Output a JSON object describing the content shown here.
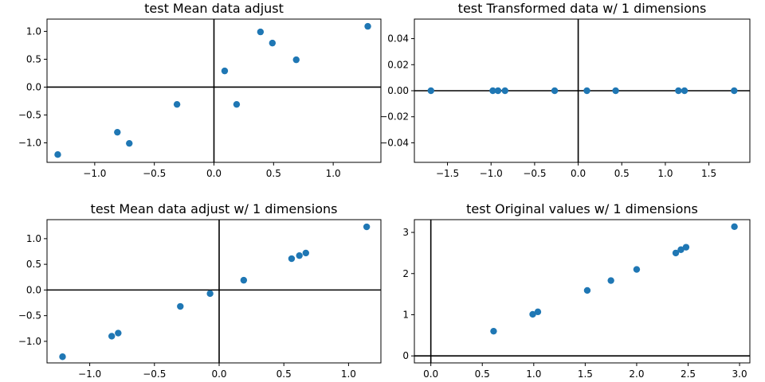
{
  "figure": {
    "point_color": "#1f77b4"
  },
  "chart_data": [
    {
      "type": "scatter",
      "title": "test Mean data adjust",
      "xlabel": "",
      "ylabel": "",
      "xlim": [
        -1.4,
        1.4
      ],
      "ylim": [
        -1.35,
        1.22
      ],
      "xticks": [
        -1.0,
        -0.5,
        0.0,
        0.5,
        1.0
      ],
      "xtick_labels": [
        "−1.0",
        "−0.5",
        "0.0",
        "0.5",
        "1.0"
      ],
      "yticks": [
        -1.0,
        -0.5,
        0.0,
        0.5,
        1.0
      ],
      "ytick_labels": [
        "−1.0",
        "−0.5",
        "0.0",
        "0.5",
        "1.0"
      ],
      "reference_lines": {
        "x": 0,
        "y": 0
      },
      "grid": false,
      "points": [
        {
          "x": 0.69,
          "y": 0.49
        },
        {
          "x": -1.31,
          "y": -1.21
        },
        {
          "x": 0.39,
          "y": 0.99
        },
        {
          "x": 0.09,
          "y": 0.29
        },
        {
          "x": 1.29,
          "y": 1.09
        },
        {
          "x": 0.49,
          "y": 0.79
        },
        {
          "x": 0.19,
          "y": -0.31
        },
        {
          "x": -0.81,
          "y": -0.81
        },
        {
          "x": -0.31,
          "y": -0.31
        },
        {
          "x": -0.71,
          "y": -1.01
        }
      ]
    },
    {
      "type": "scatter",
      "title": "test Transformed data w/ 1 dimensions",
      "xlabel": "",
      "ylabel": "",
      "xlim": [
        -1.88,
        1.97
      ],
      "ylim": [
        -0.055,
        0.055
      ],
      "xticks": [
        -1.5,
        -1.0,
        -0.5,
        0.0,
        0.5,
        1.0,
        1.5
      ],
      "xtick_labels": [
        "−1.5",
        "−1.0",
        "−0.5",
        "0.0",
        "0.5",
        "1.0",
        "1.5"
      ],
      "yticks": [
        -0.04,
        -0.02,
        0.0,
        0.02,
        0.04
      ],
      "ytick_labels": [
        "−0.04",
        "−0.02",
        "0.00",
        "0.02",
        "0.04"
      ],
      "reference_lines": {
        "x": 0,
        "y": 0
      },
      "grid": false,
      "points": [
        {
          "x": -1.69,
          "y": 0
        },
        {
          "x": -0.98,
          "y": 0
        },
        {
          "x": -0.92,
          "y": 0
        },
        {
          "x": -0.84,
          "y": 0
        },
        {
          "x": -0.27,
          "y": 0
        },
        {
          "x": 0.1,
          "y": 0
        },
        {
          "x": 0.43,
          "y": 0
        },
        {
          "x": 1.15,
          "y": 0
        },
        {
          "x": 1.22,
          "y": 0
        },
        {
          "x": 1.79,
          "y": 0
        }
      ]
    },
    {
      "type": "scatter",
      "title": "test Mean data adjust w/ 1 dimensions",
      "xlabel": "",
      "ylabel": "",
      "xlim": [
        -1.33,
        1.25
      ],
      "ylim": [
        -1.42,
        1.37
      ],
      "xticks": [
        -1.0,
        -0.5,
        0.0,
        0.5,
        1.0
      ],
      "xtick_labels": [
        "−1.0",
        "−0.5",
        "0.0",
        "0.5",
        "1.0"
      ],
      "yticks": [
        -1.0,
        -0.5,
        0.0,
        0.5,
        1.0
      ],
      "ytick_labels": [
        "−1.0",
        "−0.5",
        "0.0",
        "0.5",
        "1.0"
      ],
      "reference_lines": {
        "x": 0,
        "y": 0
      },
      "grid": false,
      "points": [
        {
          "x": -1.21,
          "y": -1.3
        },
        {
          "x": -0.83,
          "y": -0.9
        },
        {
          "x": -0.78,
          "y": -0.84
        },
        {
          "x": -0.3,
          "y": -0.32
        },
        {
          "x": -0.07,
          "y": -0.07
        },
        {
          "x": 0.19,
          "y": 0.19
        },
        {
          "x": 0.56,
          "y": 0.61
        },
        {
          "x": 0.62,
          "y": 0.67
        },
        {
          "x": 0.67,
          "y": 0.72
        },
        {
          "x": 1.14,
          "y": 1.23
        }
      ]
    },
    {
      "type": "scatter",
      "title": "test Original values w/ 1 dimensions",
      "xlabel": "",
      "ylabel": "",
      "xlim": [
        -0.16,
        3.1
      ],
      "ylim": [
        -0.17,
        3.31
      ],
      "xticks": [
        0.0,
        0.5,
        1.0,
        1.5,
        2.0,
        2.5,
        3.0
      ],
      "xtick_labels": [
        "0.0",
        "0.5",
        "1.0",
        "1.5",
        "2.0",
        "2.5",
        "3.0"
      ],
      "yticks": [
        0,
        1,
        2,
        3
      ],
      "ytick_labels": [
        "0",
        "1",
        "2",
        "3"
      ],
      "reference_lines": {
        "x": 0,
        "y": 0
      },
      "grid": false,
      "points": [
        {
          "x": 0.61,
          "y": 0.6
        },
        {
          "x": 0.99,
          "y": 1.01
        },
        {
          "x": 1.04,
          "y": 1.07
        },
        {
          "x": 1.52,
          "y": 1.59
        },
        {
          "x": 1.75,
          "y": 1.83
        },
        {
          "x": 2.0,
          "y": 2.1
        },
        {
          "x": 2.38,
          "y": 2.5
        },
        {
          "x": 2.43,
          "y": 2.58
        },
        {
          "x": 2.48,
          "y": 2.64
        },
        {
          "x": 2.95,
          "y": 3.14
        }
      ]
    }
  ]
}
